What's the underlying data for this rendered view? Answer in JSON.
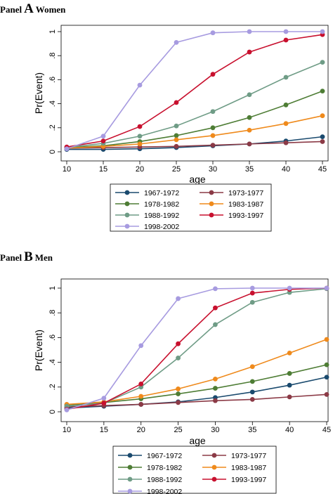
{
  "panels": [
    {
      "word1": "Panel",
      "letter": "A",
      "word2": "Women"
    },
    {
      "word1": "Panel",
      "letter": "B",
      "word2": "Men"
    }
  ],
  "colors": {
    "1967-1972": "#1a4a6e",
    "1973-1977": "#8b3a46",
    "1978-1982": "#4e7d35",
    "1983-1987": "#ef8a1c",
    "1988-1992": "#6f9c86",
    "1993-1997": "#c8102e",
    "1998-2002": "#a79be0"
  },
  "chart_data": [
    {
      "type": "line",
      "xlabel": "age",
      "ylabel": "Pr(Event)",
      "x": [
        10,
        15,
        20,
        25,
        30,
        35,
        40,
        45
      ],
      "xlim": [
        10,
        45
      ],
      "ylim": [
        0,
        1
      ],
      "yticks": [
        "0",
        ".2",
        ".4",
        ".6",
        ".8",
        "1"
      ],
      "grid": false,
      "legend_position": "bottom",
      "series": [
        {
          "name": "1967-1972",
          "values": [
            0.02,
            0.02,
            0.025,
            0.035,
            0.05,
            0.065,
            0.09,
            0.125
          ]
        },
        {
          "name": "1973-1977",
          "values": [
            0.03,
            0.035,
            0.04,
            0.045,
            0.055,
            0.065,
            0.075,
            0.085
          ]
        },
        {
          "name": "1978-1982",
          "values": [
            0.035,
            0.05,
            0.085,
            0.135,
            0.2,
            0.285,
            0.39,
            0.505
          ]
        },
        {
          "name": "1983-1987",
          "values": [
            0.03,
            0.045,
            0.065,
            0.1,
            0.135,
            0.18,
            0.235,
            0.3
          ]
        },
        {
          "name": "1988-1992",
          "values": [
            0.035,
            0.07,
            0.13,
            0.215,
            0.335,
            0.475,
            0.62,
            0.745
          ]
        },
        {
          "name": "1993-1997",
          "values": [
            0.04,
            0.09,
            0.21,
            0.41,
            0.645,
            0.83,
            0.93,
            0.975
          ]
        },
        {
          "name": "1998-2002",
          "values": [
            0.025,
            0.13,
            0.555,
            0.91,
            0.99,
            1.0,
            1.0,
            1.0
          ]
        }
      ]
    },
    {
      "type": "line",
      "xlabel": "age",
      "ylabel": "Pr(Event)",
      "x": [
        10,
        15,
        20,
        25,
        30,
        35,
        40,
        45
      ],
      "xlim": [
        10,
        45
      ],
      "ylim": [
        0,
        1
      ],
      "yticks": [
        "0",
        ".2",
        ".4",
        ".6",
        ".8",
        "1"
      ],
      "grid": false,
      "legend_position": "bottom",
      "series": [
        {
          "name": "1967-1972",
          "values": [
            0.03,
            0.045,
            0.06,
            0.08,
            0.115,
            0.16,
            0.215,
            0.28
          ]
        },
        {
          "name": "1973-1977",
          "values": [
            0.04,
            0.05,
            0.06,
            0.075,
            0.09,
            0.1,
            0.12,
            0.14
          ]
        },
        {
          "name": "1978-1982",
          "values": [
            0.055,
            0.075,
            0.105,
            0.145,
            0.19,
            0.245,
            0.31,
            0.38
          ]
        },
        {
          "name": "1983-1987",
          "values": [
            0.06,
            0.08,
            0.125,
            0.185,
            0.265,
            0.365,
            0.475,
            0.585
          ]
        },
        {
          "name": "1988-1992",
          "values": [
            0.045,
            0.07,
            0.2,
            0.435,
            0.705,
            0.885,
            0.965,
            0.995
          ]
        },
        {
          "name": "1993-1997",
          "values": [
            0.02,
            0.07,
            0.225,
            0.55,
            0.84,
            0.96,
            0.99,
            1.0
          ]
        },
        {
          "name": "1998-2002",
          "values": [
            0.015,
            0.11,
            0.535,
            0.915,
            0.995,
            1.0,
            1.0,
            1.0
          ]
        }
      ]
    }
  ]
}
